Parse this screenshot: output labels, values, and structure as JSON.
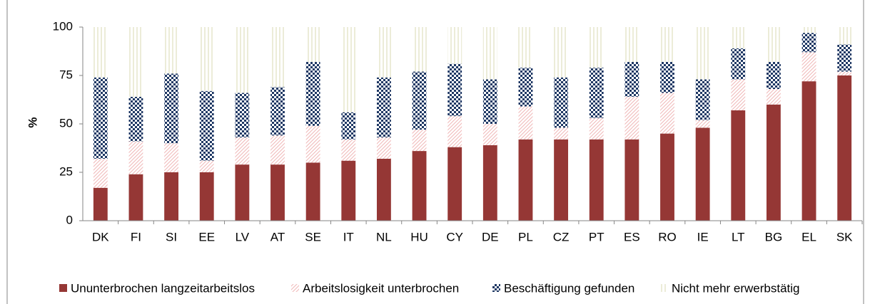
{
  "chart_data": {
    "type": "stacked-bar",
    "y_label": "%",
    "categories": [
      "DK",
      "FI",
      "SI",
      "EE",
      "LV",
      "AT",
      "SE",
      "IT",
      "NL",
      "HU",
      "CY",
      "DE",
      "PL",
      "CZ",
      "PT",
      "ES",
      "RO",
      "IE",
      "LT",
      "BG",
      "EL",
      "SK"
    ],
    "series": [
      {
        "name": "Ununterbrochen langzeitarbeitslos",
        "color": "#953735",
        "values": [
          17,
          24,
          25,
          25,
          29,
          29,
          30,
          31,
          32,
          36,
          38,
          39,
          42,
          42,
          42,
          42,
          45,
          48,
          57,
          60,
          72,
          75
        ]
      },
      {
        "name": "Arbeitslosigkeit unterbrochen",
        "color": "#f0b8b8",
        "values": [
          15,
          17,
          15,
          6,
          14,
          15,
          19,
          11,
          11,
          11,
          16,
          11,
          17,
          6,
          11,
          22,
          21,
          4,
          16,
          8,
          15,
          2
        ]
      },
      {
        "name": "Beschäftigung gefunden",
        "color": "#1f3864",
        "values": [
          42,
          23,
          36,
          36,
          23,
          25,
          33,
          14,
          31,
          30,
          27,
          23,
          20,
          26,
          26,
          18,
          16,
          21,
          16,
          14,
          10,
          14
        ]
      },
      {
        "name": "Nicht mehr erwerbstätig",
        "color": "#d8d8b0",
        "values": [
          26,
          36,
          24,
          33,
          34,
          31,
          18,
          44,
          26,
          23,
          19,
          27,
          21,
          26,
          21,
          18,
          18,
          27,
          11,
          18,
          3,
          9
        ]
      }
    ],
    "ylim": [
      0,
      100
    ],
    "yticks": [
      0,
      25,
      50,
      75,
      100
    ],
    "grid": false
  }
}
